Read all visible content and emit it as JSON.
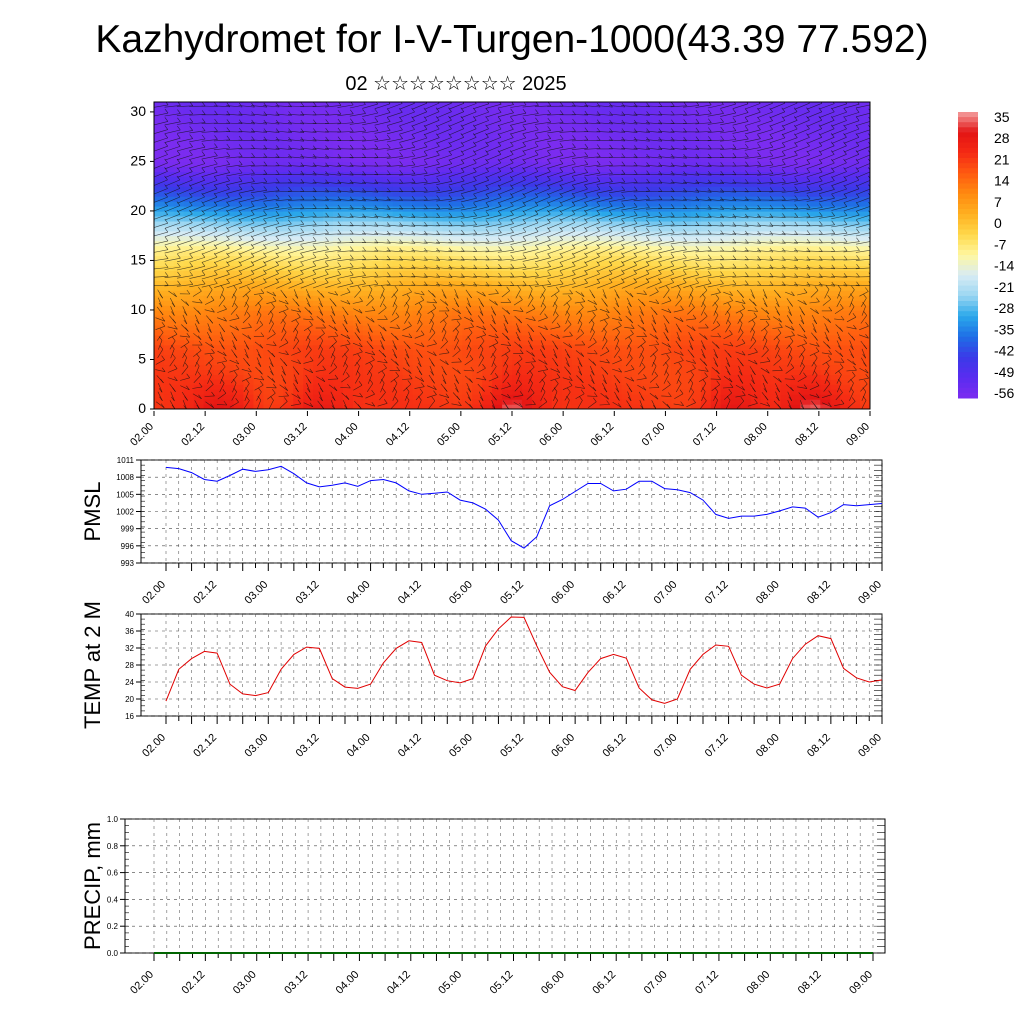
{
  "title": "Kazhydromet for I-V-Turgen-1000(43.39 77.592)",
  "subtitle": "02 ☆☆☆☆☆☆☆☆ 2025",
  "time_labels": [
    "02.00",
    "02.12",
    "03.00",
    "03.12",
    "04.00",
    "04.12",
    "05.00",
    "05.12",
    "06.00",
    "06.12",
    "07.00",
    "07.12",
    "08.00",
    "08.12",
    "09.00"
  ],
  "colorbar": {
    "labels": [
      "35",
      "28",
      "21",
      "14",
      "7",
      "0",
      "-7",
      "-14",
      "-21",
      "-28",
      "-35",
      "-42",
      "-49",
      "-56"
    ]
  },
  "chart_data": [
    {
      "type": "heatmap",
      "name": "temperature-wind-cross-section",
      "y_ticks": [
        "0",
        "5",
        "10",
        "15",
        "20",
        "25",
        "30"
      ],
      "ylim": [
        0,
        31
      ],
      "xlim": [
        0,
        14
      ],
      "palette": [
        "#7b2cf0",
        "#5a2cf0",
        "#3a3ae8",
        "#1f6fe6",
        "#2aa8ea",
        "#9ad6f2",
        "#d8ecf4",
        "#fff7a0",
        "#ffd84a",
        "#ffb020",
        "#ff8a10",
        "#ff5a10",
        "#f52a14",
        "#e31414",
        "#f4a0a0"
      ],
      "color_scale": [
        -60,
        38
      ],
      "hot_spots": [
        {
          "x": 1.3,
          "peak": 30
        },
        {
          "x": 3.2,
          "peak": 31
        },
        {
          "x": 7.0,
          "peak": 37
        },
        {
          "x": 11.3,
          "peak": 32
        },
        {
          "x": 12.9,
          "peak": 34
        }
      ]
    },
    {
      "type": "line",
      "name": "pmsl",
      "ylabel": "PMSL",
      "y_ticks": [
        "1011",
        "1008",
        "1005",
        "1002",
        "999",
        "996",
        "993"
      ],
      "ylim": [
        993,
        1011
      ],
      "color": "#0000ff",
      "x": [
        0,
        0.25,
        0.5,
        0.75,
        1,
        1.25,
        1.5,
        1.75,
        2,
        2.25,
        2.5,
        2.75,
        3,
        3.25,
        3.5,
        3.75,
        4,
        4.25,
        4.5,
        4.75,
        5,
        5.25,
        5.5,
        5.75,
        6,
        6.25,
        6.5,
        6.75,
        7,
        7.25,
        7.5,
        7.75,
        8,
        8.25,
        8.5,
        8.75,
        9,
        9.25,
        9.5,
        9.75,
        10,
        10.25,
        10.5,
        10.75,
        11,
        11.25,
        11.5,
        11.75,
        12,
        12.25,
        12.5,
        12.75,
        13,
        13.25,
        13.5,
        13.75,
        14
      ],
      "values": [
        1009.7,
        1009.5,
        1008.8,
        1007.6,
        1007.3,
        1008.3,
        1009.4,
        1009.0,
        1009.3,
        1009.9,
        1008.6,
        1007.0,
        1006.3,
        1006.6,
        1007.0,
        1006.4,
        1007.4,
        1007.6,
        1007.0,
        1005.6,
        1005.0,
        1005.2,
        1005.4,
        1004.0,
        1003.5,
        1002.4,
        1000.5,
        996.9,
        995.6,
        997.6,
        1003.0,
        1004.1,
        1005.5,
        1006.9,
        1006.9,
        1005.6,
        1005.9,
        1007.3,
        1007.3,
        1006.0,
        1005.8,
        1005.3,
        1004.0,
        1001.5,
        1000.8,
        1001.2,
        1001.2,
        1001.5,
        1002.1,
        1002.8,
        1002.6,
        1001.0,
        1001.8,
        1003.2,
        1003.0,
        1003.2,
        1003.4
      ]
    },
    {
      "type": "line",
      "name": "temp-2m",
      "ylabel": "TEMP at 2 M",
      "y_ticks": [
        "40",
        "36",
        "32",
        "28",
        "24",
        "20",
        "16"
      ],
      "ylim": [
        16,
        40
      ],
      "color": "#e00000",
      "x": [
        0,
        0.25,
        0.5,
        0.75,
        1,
        1.25,
        1.5,
        1.75,
        2,
        2.25,
        2.5,
        2.75,
        3,
        3.25,
        3.5,
        3.75,
        4,
        4.25,
        4.5,
        4.75,
        5,
        5.25,
        5.5,
        5.75,
        6,
        6.25,
        6.5,
        6.75,
        7,
        7.25,
        7.5,
        7.75,
        8,
        8.25,
        8.5,
        8.75,
        9,
        9.25,
        9.5,
        9.75,
        10,
        10.25,
        10.5,
        10.75,
        11,
        11.25,
        11.5,
        11.75,
        12,
        12.25,
        12.5,
        12.75,
        13,
        13.25,
        13.5,
        13.75,
        14
      ],
      "values": [
        19.5,
        27.0,
        29.5,
        31.2,
        30.8,
        23.5,
        21.2,
        20.8,
        21.5,
        27.0,
        30.5,
        32.2,
        31.9,
        24.8,
        22.8,
        22.5,
        23.5,
        28.5,
        31.9,
        33.7,
        33.3,
        25.6,
        24.3,
        23.8,
        24.8,
        32.5,
        36.5,
        39.3,
        39.2,
        32.5,
        26.3,
        22.9,
        22.0,
        26.2,
        29.5,
        30.5,
        29.6,
        22.6,
        19.8,
        19.0,
        20.0,
        27.0,
        30.5,
        32.7,
        32.4,
        25.6,
        23.5,
        22.6,
        23.5,
        29.5,
        32.9,
        34.9,
        34.2,
        27.2,
        25.0,
        24.0,
        24.5
      ]
    },
    {
      "type": "line",
      "name": "precip",
      "ylabel": "PRECIP, mm",
      "y_ticks": [
        "1.0",
        "0.8",
        "0.6",
        "0.4",
        "0.2",
        "0.0"
      ],
      "ylim": [
        0,
        1
      ],
      "color": "#006400",
      "x": [
        0,
        14
      ],
      "values": [
        0,
        0
      ]
    }
  ]
}
